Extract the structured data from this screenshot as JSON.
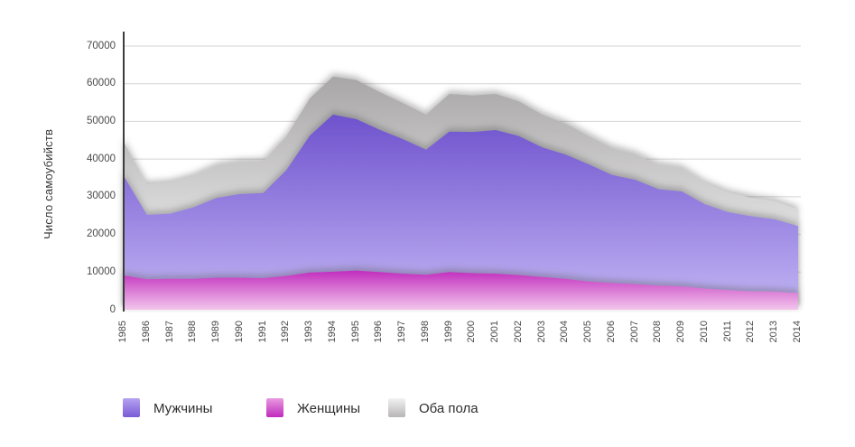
{
  "chart_data": {
    "type": "area",
    "title": "",
    "xlabel": "",
    "ylabel": "Число самоубийств",
    "ylim": [
      0,
      70000
    ],
    "yticks": [
      0,
      10000,
      20000,
      30000,
      40000,
      50000,
      60000,
      70000
    ],
    "grid": true,
    "stacked": false,
    "legend_position": "bottom",
    "categories": [
      "1985",
      "1986",
      "1987",
      "1988",
      "1989",
      "1990",
      "1991",
      "1992",
      "1993",
      "1994",
      "1995",
      "1996",
      "1997",
      "1998",
      "1999",
      "2000",
      "2001",
      "2002",
      "2003",
      "2004",
      "2005",
      "2006",
      "2007",
      "2008",
      "2009",
      "2010",
      "2011",
      "2012",
      "2013",
      "2014"
    ],
    "series": [
      {
        "name": "Мужчины",
        "fill_top": "#6e52cd",
        "fill_bottom": "#c3b6f5",
        "swatch_top": "#b5a4f0",
        "swatch_bottom": "#7a5ad6",
        "values": [
          35500,
          25200,
          25500,
          27200,
          29700,
          30700,
          31000,
          37100,
          46200,
          51800,
          50600,
          47800,
          45300,
          42500,
          47300,
          47200,
          47700,
          46100,
          43100,
          41200,
          38600,
          35800,
          34500,
          32000,
          31400,
          28000,
          25900,
          24800,
          24000,
          22200
        ]
      },
      {
        "name": "Женщины",
        "fill_top": "#c12dbe",
        "fill_bottom": "#f3c6ec",
        "swatch_top": "#e89ae0",
        "swatch_bottom": "#c02abc",
        "values": [
          9100,
          8100,
          8200,
          8200,
          8500,
          8500,
          8400,
          9000,
          9900,
          10100,
          10400,
          10000,
          9600,
          9300,
          10000,
          9700,
          9600,
          9200,
          8700,
          8200,
          7500,
          7100,
          6800,
          6400,
          6200,
          5600,
          5200,
          4900,
          4800,
          4400
        ]
      },
      {
        "name": "Оба пола",
        "fill_top": "#a8a6a6",
        "fill_bottom": "#ffffff",
        "swatch_top": "#f3f2f2",
        "swatch_bottom": "#b7b5b5",
        "values": [
          44600,
          33300,
          33700,
          35400,
          38200,
          39200,
          39400,
          46100,
          56100,
          61900,
          61000,
          57800,
          54900,
          51800,
          57300,
          56900,
          57300,
          55300,
          51800,
          49400,
          46100,
          42900,
          41300,
          38400,
          37600,
          33600,
          31100,
          29700,
          28800,
          26600
        ]
      }
    ],
    "colors": {
      "axis": "#3d3d3d",
      "gridline": "#d4d4d4",
      "tick_text": "#4a4a4a",
      "legend_text": "#2e2e2e"
    }
  }
}
